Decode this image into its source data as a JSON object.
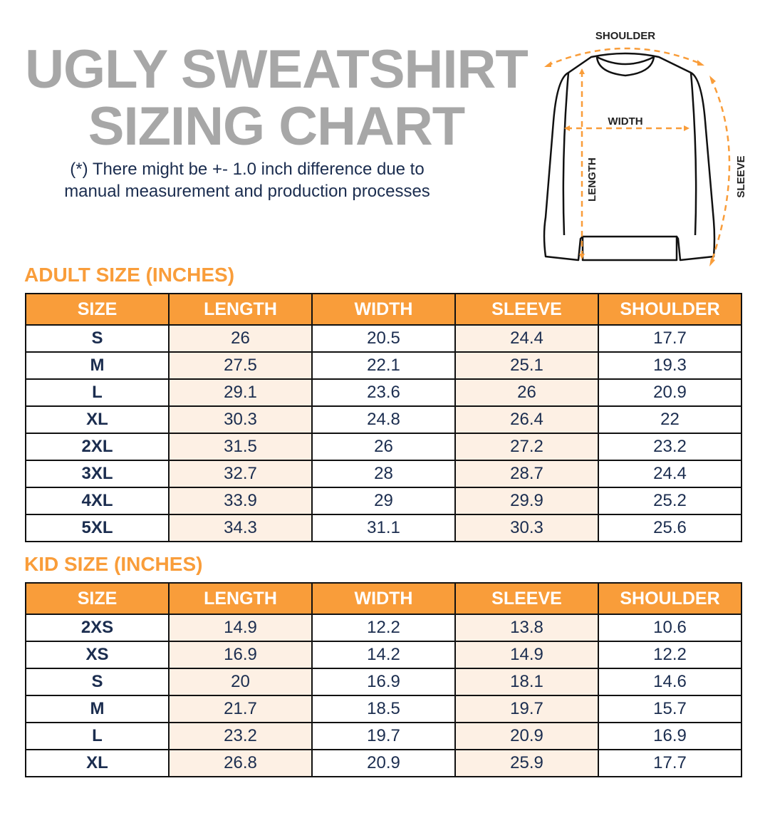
{
  "title_line1": "UGLY SWEATSHIRT",
  "title_line2": "SIZING CHART",
  "note_line1": "(*) There might be +- 1.0 inch difference due to",
  "note_line2": "manual measurement and production processes",
  "diagram": {
    "shoulder": "SHOULDER",
    "width": "WIDTH",
    "length": "LENGTH",
    "sleeve": "SLEEVE",
    "icon": "sweatshirt-outline",
    "arrow_color": "#f99d3a"
  },
  "colors": {
    "header": "#f99d3a",
    "highlight": "#fdf0e4",
    "text": "#1b2d4f",
    "title": "#a7a7a7"
  },
  "adult": {
    "heading": "ADULT SIZE (INCHES)",
    "columns": [
      "SIZE",
      "LENGTH",
      "WIDTH",
      "SLEEVE",
      "SHOULDER"
    ],
    "rows": [
      [
        "S",
        "26",
        "20.5",
        "24.4",
        "17.7"
      ],
      [
        "M",
        "27.5",
        "22.1",
        "25.1",
        "19.3"
      ],
      [
        "L",
        "29.1",
        "23.6",
        "26",
        "20.9"
      ],
      [
        "XL",
        "30.3",
        "24.8",
        "26.4",
        "22"
      ],
      [
        "2XL",
        "31.5",
        "26",
        "27.2",
        "23.2"
      ],
      [
        "3XL",
        "32.7",
        "28",
        "28.7",
        "24.4"
      ],
      [
        "4XL",
        "33.9",
        "29",
        "29.9",
        "25.2"
      ],
      [
        "5XL",
        "34.3",
        "31.1",
        "30.3",
        "25.6"
      ]
    ]
  },
  "kid": {
    "heading": "KID SIZE (INCHES)",
    "columns": [
      "SIZE",
      "LENGTH",
      "WIDTH",
      "SLEEVE",
      "SHOULDER"
    ],
    "rows": [
      [
        "2XS",
        "14.9",
        "12.2",
        "13.8",
        "10.6"
      ],
      [
        "XS",
        "16.9",
        "14.2",
        "14.9",
        "12.2"
      ],
      [
        "S",
        "20",
        "16.9",
        "18.1",
        "14.6"
      ],
      [
        "M",
        "21.7",
        "18.5",
        "19.7",
        "15.7"
      ],
      [
        "L",
        "23.2",
        "19.7",
        "20.9",
        "16.9"
      ],
      [
        "XL",
        "26.8",
        "20.9",
        "25.9",
        "17.7"
      ]
    ]
  }
}
